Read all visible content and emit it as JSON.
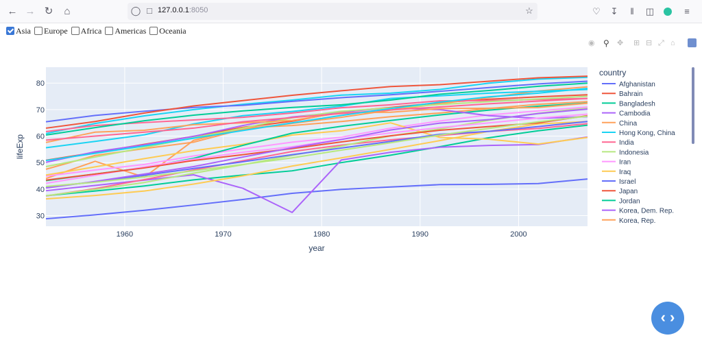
{
  "browser": {
    "url_host": "127.0.0.1",
    "url_port": ":8050",
    "icons": [
      "back-icon",
      "forward-icon",
      "reload-icon",
      "home-icon",
      "shield-icon",
      "page-icon",
      "star-icon",
      "pocket-icon",
      "download-icon",
      "library-icon",
      "sidebar-icon",
      "profile-icon",
      "menu-icon"
    ]
  },
  "filters": [
    {
      "label": "Asia",
      "checked": true
    },
    {
      "label": "Europe",
      "checked": false
    },
    {
      "label": "Africa",
      "checked": false
    },
    {
      "label": "Americas",
      "checked": false
    },
    {
      "label": "Oceania",
      "checked": false
    }
  ],
  "modebar_icons": [
    "camera-icon",
    "zoom-icon",
    "pan-icon",
    "zoom-in-icon",
    "zoom-out-icon",
    "autoscale-icon",
    "reset-icon",
    "plotly-logo-icon"
  ],
  "legend": {
    "title": "country",
    "items": [
      {
        "name": "Afghanistan",
        "color": "#636efa"
      },
      {
        "name": "Bahrain",
        "color": "#EF553B"
      },
      {
        "name": "Bangladesh",
        "color": "#00cc96"
      },
      {
        "name": "Cambodia",
        "color": "#ab63fa"
      },
      {
        "name": "China",
        "color": "#FFA15A"
      },
      {
        "name": "Hong Kong, China",
        "color": "#19d3f3"
      },
      {
        "name": "India",
        "color": "#FF6692"
      },
      {
        "name": "Indonesia",
        "color": "#B6E880"
      },
      {
        "name": "Iran",
        "color": "#FF97FF"
      },
      {
        "name": "Iraq",
        "color": "#FECB52"
      },
      {
        "name": "Israel",
        "color": "#636efa"
      },
      {
        "name": "Japan",
        "color": "#EF553B"
      },
      {
        "name": "Jordan",
        "color": "#00cc96"
      },
      {
        "name": "Korea, Dem. Rep.",
        "color": "#ab63fa"
      },
      {
        "name": "Korea, Rep.",
        "color": "#FFA15A"
      }
    ]
  },
  "chart_data": {
    "type": "line",
    "xlabel": "year",
    "ylabel": "lifeExp",
    "xlim": [
      1952,
      2007
    ],
    "ylim": [
      26,
      86
    ],
    "x_ticks": [
      1960,
      1970,
      1980,
      1990,
      2000
    ],
    "y_ticks": [
      30,
      40,
      50,
      60,
      70,
      80
    ],
    "x": [
      1952,
      1957,
      1962,
      1967,
      1972,
      1977,
      1982,
      1987,
      1992,
      1997,
      2002,
      2007
    ],
    "series": [
      {
        "name": "Afghanistan",
        "color": "#636efa",
        "values": [
          28.8,
          30.3,
          32.0,
          34.0,
          36.1,
          38.4,
          39.9,
          40.8,
          41.7,
          41.8,
          42.1,
          43.8
        ]
      },
      {
        "name": "Bahrain",
        "color": "#EF553B",
        "values": [
          50.9,
          53.8,
          56.9,
          59.9,
          63.3,
          65.6,
          69.1,
          70.8,
          72.6,
          73.9,
          74.8,
          75.6
        ]
      },
      {
        "name": "Bangladesh",
        "color": "#00cc96",
        "values": [
          37.5,
          39.3,
          41.2,
          43.5,
          45.3,
          46.9,
          50.0,
          52.8,
          56.0,
          59.4,
          62.0,
          64.1
        ]
      },
      {
        "name": "Cambodia",
        "color": "#ab63fa",
        "values": [
          39.4,
          41.4,
          43.4,
          45.4,
          40.3,
          31.2,
          51.0,
          53.9,
          55.8,
          56.5,
          56.8,
          59.7
        ]
      },
      {
        "name": "China",
        "color": "#FFA15A",
        "values": [
          44.0,
          50.5,
          44.5,
          58.4,
          63.1,
          64.0,
          65.5,
          67.3,
          68.7,
          70.4,
          72.0,
          73.0
        ]
      },
      {
        "name": "Hong Kong, China",
        "color": "#19d3f3",
        "values": [
          60.96,
          64.75,
          67.65,
          70.0,
          72.0,
          73.6,
          75.45,
          76.2,
          77.6,
          80.0,
          81.5,
          82.2
        ]
      },
      {
        "name": "India",
        "color": "#FF6692",
        "values": [
          37.4,
          40.2,
          43.6,
          47.2,
          50.7,
          54.2,
          56.6,
          58.6,
          60.2,
          61.8,
          62.9,
          64.7
        ]
      },
      {
        "name": "Indonesia",
        "color": "#B6E880",
        "values": [
          37.5,
          39.9,
          42.5,
          46.0,
          49.2,
          52.7,
          56.2,
          60.1,
          62.7,
          66.0,
          68.6,
          70.7
        ]
      },
      {
        "name": "Iran",
        "color": "#FF97FF",
        "values": [
          44.9,
          47.2,
          49.3,
          52.5,
          55.2,
          57.7,
          59.6,
          63.0,
          65.7,
          68.0,
          69.5,
          71.0
        ]
      },
      {
        "name": "Iraq",
        "color": "#FECB52",
        "values": [
          45.3,
          48.4,
          51.5,
          54.5,
          56.9,
          60.4,
          62.0,
          65.0,
          59.5,
          58.8,
          57.0,
          59.5
        ]
      },
      {
        "name": "Israel",
        "color": "#636efa",
        "values": [
          65.4,
          67.8,
          69.4,
          70.8,
          71.6,
          73.1,
          74.5,
          75.6,
          76.9,
          78.3,
          79.7,
          80.7
        ]
      },
      {
        "name": "Japan",
        "color": "#EF553B",
        "values": [
          63.0,
          65.5,
          68.7,
          71.4,
          73.4,
          75.4,
          77.1,
          78.7,
          79.4,
          80.7,
          82.0,
          82.6
        ]
      },
      {
        "name": "Jordan",
        "color": "#00cc96",
        "values": [
          43.2,
          45.7,
          48.1,
          51.6,
          56.5,
          61.1,
          63.7,
          65.9,
          68.0,
          69.8,
          71.3,
          72.5
        ]
      },
      {
        "name": "Korea, Dem. Rep.",
        "color": "#ab63fa",
        "values": [
          50.1,
          54.1,
          56.7,
          59.9,
          64.0,
          67.2,
          69.1,
          70.6,
          70.0,
          67.7,
          66.7,
          67.3
        ]
      },
      {
        "name": "Korea, Rep.",
        "color": "#FFA15A",
        "values": [
          47.5,
          52.7,
          55.3,
          57.7,
          62.6,
          64.8,
          67.1,
          69.8,
          72.2,
          74.6,
          77.0,
          78.6
        ]
      },
      {
        "name": "",
        "color": "#19d3f3",
        "values": [
          55.6,
          58.0,
          60.5,
          64.6,
          67.7,
          69.3,
          71.3,
          74.2,
          75.2,
          76.2,
          76.9,
          77.6
        ]
      },
      {
        "name": "",
        "color": "#FF6692",
        "values": [
          61.7,
          64.0,
          65.1,
          66.1,
          67.1,
          68.7,
          70.7,
          71.8,
          73.3,
          73.4,
          73.8,
          74.2
        ]
      },
      {
        "name": "",
        "color": "#B6E880",
        "values": [
          48.5,
          52.1,
          55.7,
          59.4,
          63.0,
          66.9,
          69.4,
          70.6,
          71.9,
          73.0,
          74.0,
          75.0
        ]
      },
      {
        "name": "",
        "color": "#FF97FF",
        "values": [
          42.2,
          45.2,
          48.4,
          51.3,
          53.9,
          56.0,
          58.8,
          61.2,
          63.2,
          65.0,
          66.8,
          68.3
        ]
      },
      {
        "name": "",
        "color": "#FECB52",
        "values": [
          36.3,
          37.6,
          39.3,
          41.9,
          45.0,
          48.7,
          51.8,
          55.0,
          58.3,
          61.8,
          64.6,
          65.5
        ]
      },
      {
        "name": "",
        "color": "#636efa",
        "values": [
          40.8,
          42.7,
          45.2,
          47.8,
          50.3,
          53.0,
          55.5,
          58.0,
          60.7,
          61.8,
          63.6,
          65.5
        ]
      },
      {
        "name": "",
        "color": "#EF553B",
        "values": [
          43.4,
          45.7,
          48.0,
          50.8,
          53.0,
          55.3,
          57.8,
          60.1,
          62.2,
          63.6,
          65.0,
          67.7
        ]
      },
      {
        "name": "",
        "color": "#00cc96",
        "values": [
          60.4,
          63.2,
          65.8,
          67.9,
          69.5,
          70.8,
          71.8,
          73.6,
          75.8,
          77.2,
          78.8,
          80.0
        ]
      },
      {
        "name": "",
        "color": "#ab63fa",
        "values": [
          40.4,
          42.9,
          45.7,
          48.5,
          52.1,
          55.6,
          58.7,
          62.3,
          64.9,
          66.2,
          68.5,
          70.2
        ]
      },
      {
        "name": "",
        "color": "#FFA15A",
        "values": [
          57.6,
          61.5,
          62.2,
          64.3,
          65.0,
          65.9,
          68.8,
          69.0,
          70.4,
          70.5,
          70.8,
          72.4
        ]
      },
      {
        "name": "",
        "color": "#FF6692",
        "values": [
          58.5,
          60.0,
          61.5,
          63.0,
          65.4,
          67.0,
          68.5,
          69.9,
          71.0,
          72.2,
          73.2,
          74.2
        ]
      },
      {
        "name": "",
        "color": "#B6E880",
        "values": [
          41.0,
          42.6,
          44.6,
          46.9,
          49.3,
          51.8,
          54.7,
          57.5,
          60.4,
          62.9,
          65.4,
          67.5
        ]
      },
      {
        "name": "",
        "color": "#19d3f3",
        "values": [
          50.8,
          53.5,
          56.3,
          59.2,
          62.1,
          65.0,
          67.8,
          70.4,
          72.8,
          74.8,
          76.2,
          78.0
        ]
      }
    ]
  }
}
